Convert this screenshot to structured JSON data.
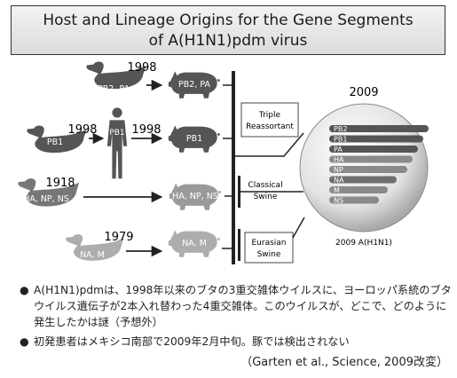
{
  "title": {
    "line1": "Host and Lineage Origins for the Gene Segments",
    "line2": "of A(H1N1)pdm virus"
  },
  "colors": {
    "dark": "#555555",
    "medium": "#777777",
    "light": "#9a9a9a",
    "lighter": "#adadad"
  },
  "hosts": [
    {
      "id": "duck1",
      "year": "1998",
      "label": "PB2, PA",
      "icon": "duck-icon",
      "target_label": "PB2, PA",
      "target_icon": "pig-icon"
    },
    {
      "id": "duck2",
      "year": "1998",
      "label": "PB1",
      "icon": "duck-icon",
      "via_year": "1998",
      "via_label": "PB1",
      "via_icon": "human-icon",
      "target_label": "PB1",
      "target_icon": "pig-icon"
    },
    {
      "id": "duck3",
      "year": "1918",
      "label": "HA, NP, NS",
      "icon": "duck-icon",
      "target_label": "HA, NP, NS",
      "target_icon": "pig-icon"
    },
    {
      "id": "duck4",
      "year": "1979",
      "label": "NA, M",
      "icon": "duck-icon",
      "target_label": "NA, M",
      "target_icon": "pig-icon"
    }
  ],
  "lineages": [
    "Triple\nReassortant",
    "Classical\nSwine",
    "Eurasian\nSwine"
  ],
  "lineage_lines": [
    [
      "Triple",
      "Reassortant"
    ],
    [
      "Classical",
      "Swine"
    ],
    [
      "Eurasian",
      "Swine"
    ]
  ],
  "virus": {
    "year": "2009",
    "caption": "2009 A(H1N1)",
    "segments": [
      "PB2",
      "PB1",
      "PA",
      "HA",
      "NP",
      "NA",
      "M",
      "NS"
    ]
  },
  "notes": {
    "bullet": "●",
    "note1": "A(H1N1)pdmは、1998年以来のブタの3重交雑体ウイルスに、ヨーロッパ系統のブタウイルス遺伝子が2本入れ替わった4重交雑体。このウイルスが、どこで、どのように発生したかは謎（予想外）",
    "note2": "初発患者はメキシコ南部で2009年2月中旬。豚では検出されない",
    "credit": "（Garten et al., Science, 2009改変）"
  }
}
